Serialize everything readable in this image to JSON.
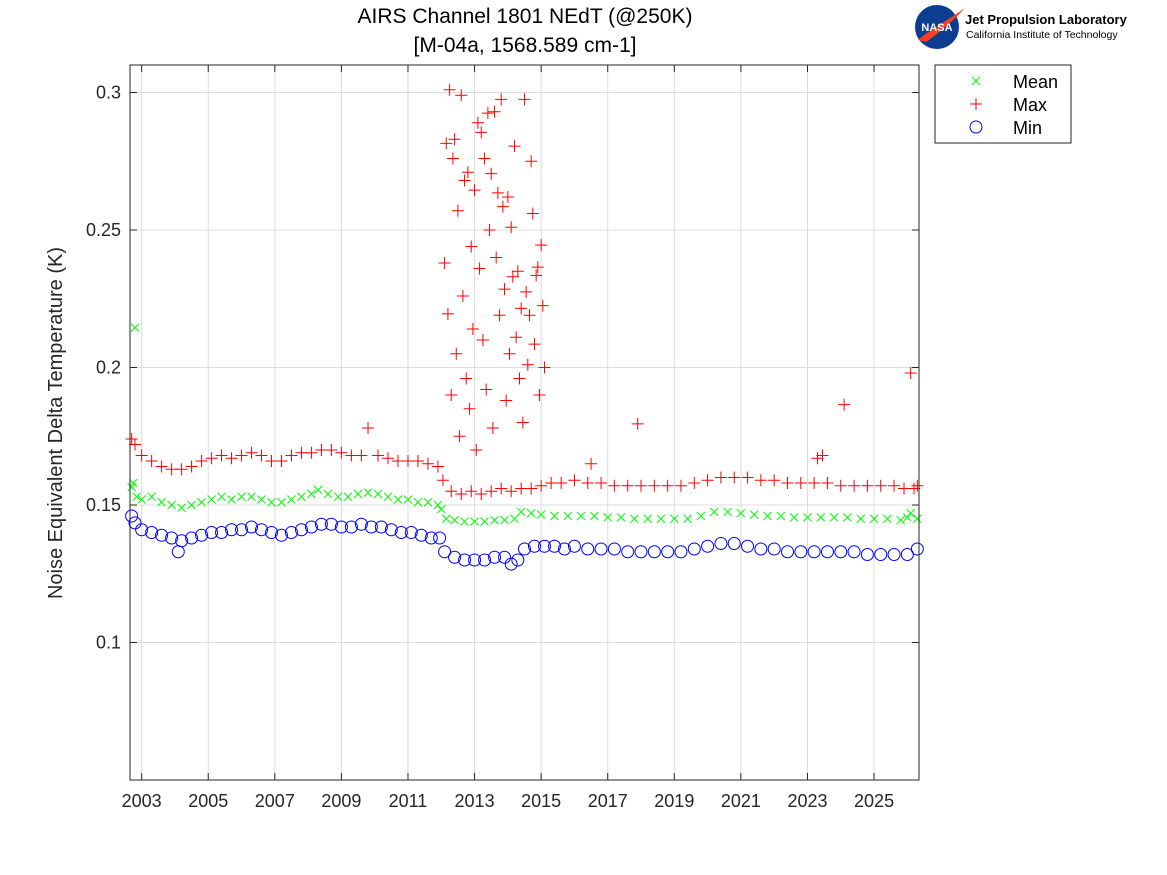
{
  "chart_data": {
    "type": "scatter",
    "title": [
      "AIRS Channel 1801 NEdT (@250K)",
      "[M-04a, 1568.589 cm-1]"
    ],
    "xlabel": "",
    "ylabel": "Noise Equivalent Delta Temperature (K)",
    "xlim": [
      2002.65,
      2026.35
    ],
    "ylim": [
      0.05,
      0.31
    ],
    "xticks": [
      2003,
      2005,
      2007,
      2009,
      2011,
      2013,
      2015,
      2017,
      2019,
      2021,
      2023,
      2025
    ],
    "xtick_labels": [
      "2003",
      "2005",
      "2007",
      "2009",
      "2011",
      "2013",
      "2015",
      "2017",
      "2019",
      "2021",
      "2023",
      "2025"
    ],
    "yticks": [
      0.1,
      0.15,
      0.2,
      0.25,
      0.3
    ],
    "ytick_labels": [
      "0.1",
      "0.15",
      "0.2",
      "0.25",
      "0.3"
    ],
    "grid": true,
    "legend": "outside-top-right",
    "series": [
      {
        "name": "Mean",
        "marker": "x",
        "color": "#00ff00",
        "points": [
          [
            2002.7,
            0.1565
          ],
          [
            2002.75,
            0.158
          ],
          [
            2002.8,
            0.2145
          ],
          [
            2002.85,
            0.153
          ],
          [
            2003.0,
            0.152
          ],
          [
            2003.3,
            0.153
          ],
          [
            2003.6,
            0.151
          ],
          [
            2003.9,
            0.15
          ],
          [
            2004.2,
            0.149
          ],
          [
            2004.5,
            0.15
          ],
          [
            2004.8,
            0.151
          ],
          [
            2005.1,
            0.152
          ],
          [
            2005.4,
            0.153
          ],
          [
            2005.7,
            0.152
          ],
          [
            2006.0,
            0.153
          ],
          [
            2006.3,
            0.153
          ],
          [
            2006.6,
            0.152
          ],
          [
            2006.9,
            0.151
          ],
          [
            2007.2,
            0.151
          ],
          [
            2007.5,
            0.152
          ],
          [
            2007.8,
            0.153
          ],
          [
            2008.1,
            0.154
          ],
          [
            2008.3,
            0.1555
          ],
          [
            2008.6,
            0.154
          ],
          [
            2008.9,
            0.153
          ],
          [
            2009.2,
            0.153
          ],
          [
            2009.5,
            0.154
          ],
          [
            2009.8,
            0.1545
          ],
          [
            2010.1,
            0.154
          ],
          [
            2010.4,
            0.153
          ],
          [
            2010.7,
            0.152
          ],
          [
            2011.0,
            0.152
          ],
          [
            2011.3,
            0.151
          ],
          [
            2011.6,
            0.151
          ],
          [
            2011.9,
            0.15
          ],
          [
            2012.0,
            0.1485
          ],
          [
            2012.15,
            0.145
          ],
          [
            2012.4,
            0.1445
          ],
          [
            2012.7,
            0.144
          ],
          [
            2013.0,
            0.144
          ],
          [
            2013.3,
            0.144
          ],
          [
            2013.6,
            0.1445
          ],
          [
            2013.9,
            0.1445
          ],
          [
            2014.2,
            0.145
          ],
          [
            2014.4,
            0.1475
          ],
          [
            2014.7,
            0.147
          ],
          [
            2015.0,
            0.1465
          ],
          [
            2015.4,
            0.146
          ],
          [
            2015.8,
            0.146
          ],
          [
            2016.2,
            0.146
          ],
          [
            2016.6,
            0.146
          ],
          [
            2017.0,
            0.1455
          ],
          [
            2017.4,
            0.1455
          ],
          [
            2017.8,
            0.145
          ],
          [
            2018.2,
            0.145
          ],
          [
            2018.6,
            0.145
          ],
          [
            2019.0,
            0.145
          ],
          [
            2019.4,
            0.145
          ],
          [
            2019.8,
            0.146
          ],
          [
            2020.2,
            0.1475
          ],
          [
            2020.6,
            0.1475
          ],
          [
            2021.0,
            0.147
          ],
          [
            2021.4,
            0.1465
          ],
          [
            2021.8,
            0.146
          ],
          [
            2022.2,
            0.146
          ],
          [
            2022.6,
            0.1455
          ],
          [
            2023.0,
            0.1455
          ],
          [
            2023.4,
            0.1455
          ],
          [
            2023.8,
            0.1455
          ],
          [
            2024.2,
            0.1455
          ],
          [
            2024.6,
            0.145
          ],
          [
            2025.0,
            0.145
          ],
          [
            2025.4,
            0.145
          ],
          [
            2025.8,
            0.1445
          ],
          [
            2026.0,
            0.1455
          ],
          [
            2026.1,
            0.147
          ],
          [
            2026.3,
            0.145
          ]
        ]
      },
      {
        "name": "Max",
        "marker": "+",
        "color": "#ff0000",
        "points": [
          [
            2002.7,
            0.174
          ],
          [
            2002.8,
            0.172
          ],
          [
            2003.0,
            0.168
          ],
          [
            2003.3,
            0.166
          ],
          [
            2003.6,
            0.164
          ],
          [
            2003.9,
            0.163
          ],
          [
            2004.2,
            0.163
          ],
          [
            2004.5,
            0.164
          ],
          [
            2004.8,
            0.166
          ],
          [
            2005.1,
            0.167
          ],
          [
            2005.4,
            0.168
          ],
          [
            2005.7,
            0.167
          ],
          [
            2006.0,
            0.168
          ],
          [
            2006.3,
            0.169
          ],
          [
            2006.6,
            0.168
          ],
          [
            2006.9,
            0.166
          ],
          [
            2007.2,
            0.166
          ],
          [
            2007.5,
            0.168
          ],
          [
            2007.8,
            0.169
          ],
          [
            2008.1,
            0.169
          ],
          [
            2008.4,
            0.17
          ],
          [
            2008.7,
            0.17
          ],
          [
            2009.0,
            0.169
          ],
          [
            2009.3,
            0.168
          ],
          [
            2009.6,
            0.168
          ],
          [
            2009.8,
            0.178
          ],
          [
            2010.1,
            0.168
          ],
          [
            2010.4,
            0.167
          ],
          [
            2010.7,
            0.166
          ],
          [
            2011.0,
            0.166
          ],
          [
            2011.3,
            0.166
          ],
          [
            2011.6,
            0.165
          ],
          [
            2011.9,
            0.164
          ],
          [
            2012.05,
            0.159
          ],
          [
            2012.1,
            0.238
          ],
          [
            2012.15,
            0.2815
          ],
          [
            2012.2,
            0.2195
          ],
          [
            2012.25,
            0.301
          ],
          [
            2012.3,
            0.19
          ],
          [
            2012.35,
            0.276
          ],
          [
            2012.4,
            0.283
          ],
          [
            2012.45,
            0.205
          ],
          [
            2012.5,
            0.257
          ],
          [
            2012.55,
            0.175
          ],
          [
            2012.6,
            0.299
          ],
          [
            2012.65,
            0.226
          ],
          [
            2012.7,
            0.268
          ],
          [
            2012.75,
            0.196
          ],
          [
            2012.8,
            0.271
          ],
          [
            2012.85,
            0.185
          ],
          [
            2012.9,
            0.244
          ],
          [
            2012.95,
            0.214
          ],
          [
            2013.0,
            0.2645
          ],
          [
            2013.05,
            0.17
          ],
          [
            2013.1,
            0.289
          ],
          [
            2013.15,
            0.236
          ],
          [
            2013.2,
            0.2855
          ],
          [
            2013.25,
            0.21
          ],
          [
            2013.3,
            0.276
          ],
          [
            2013.35,
            0.192
          ],
          [
            2013.4,
            0.2925
          ],
          [
            2013.45,
            0.25
          ],
          [
            2013.5,
            0.2705
          ],
          [
            2013.55,
            0.178
          ],
          [
            2013.6,
            0.293
          ],
          [
            2013.65,
            0.24
          ],
          [
            2013.7,
            0.2635
          ],
          [
            2013.75,
            0.219
          ],
          [
            2013.8,
            0.2975
          ],
          [
            2013.85,
            0.2585
          ],
          [
            2013.9,
            0.2285
          ],
          [
            2013.95,
            0.188
          ],
          [
            2014.0,
            0.262
          ],
          [
            2014.05,
            0.205
          ],
          [
            2014.1,
            0.251
          ],
          [
            2014.15,
            0.233
          ],
          [
            2014.2,
            0.2805
          ],
          [
            2014.25,
            0.211
          ],
          [
            2014.3,
            0.235
          ],
          [
            2014.35,
            0.196
          ],
          [
            2014.4,
            0.2215
          ],
          [
            2014.45,
            0.18
          ],
          [
            2014.5,
            0.2975
          ],
          [
            2014.55,
            0.2275
          ],
          [
            2014.6,
            0.201
          ],
          [
            2014.65,
            0.219
          ],
          [
            2014.7,
            0.275
          ],
          [
            2014.75,
            0.256
          ],
          [
            2014.8,
            0.2085
          ],
          [
            2014.85,
            0.2335
          ],
          [
            2014.9,
            0.2365
          ],
          [
            2014.95,
            0.19
          ],
          [
            2015.0,
            0.2445
          ],
          [
            2015.05,
            0.2225
          ],
          [
            2015.1,
            0.2
          ],
          [
            2012.3,
            0.155
          ],
          [
            2012.6,
            0.154
          ],
          [
            2012.9,
            0.155
          ],
          [
            2013.2,
            0.154
          ],
          [
            2013.5,
            0.155
          ],
          [
            2013.8,
            0.156
          ],
          [
            2014.1,
            0.155
          ],
          [
            2014.4,
            0.156
          ],
          [
            2014.7,
            0.156
          ],
          [
            2015.0,
            0.157
          ],
          [
            2015.3,
            0.158
          ],
          [
            2015.6,
            0.158
          ],
          [
            2016.0,
            0.159
          ],
          [
            2016.4,
            0.158
          ],
          [
            2016.5,
            0.165
          ],
          [
            2016.8,
            0.158
          ],
          [
            2017.2,
            0.157
          ],
          [
            2017.6,
            0.157
          ],
          [
            2017.9,
            0.1795
          ],
          [
            2018.0,
            0.157
          ],
          [
            2018.4,
            0.157
          ],
          [
            2018.8,
            0.157
          ],
          [
            2019.2,
            0.157
          ],
          [
            2019.6,
            0.158
          ],
          [
            2020.0,
            0.159
          ],
          [
            2020.4,
            0.16
          ],
          [
            2020.8,
            0.16
          ],
          [
            2021.2,
            0.16
          ],
          [
            2021.6,
            0.159
          ],
          [
            2022.0,
            0.159
          ],
          [
            2022.4,
            0.158
          ],
          [
            2022.8,
            0.158
          ],
          [
            2023.2,
            0.158
          ],
          [
            2023.3,
            0.167
          ],
          [
            2023.45,
            0.168
          ],
          [
            2023.6,
            0.158
          ],
          [
            2024.0,
            0.157
          ],
          [
            2024.1,
            0.1865
          ],
          [
            2024.4,
            0.157
          ],
          [
            2024.8,
            0.157
          ],
          [
            2025.2,
            0.157
          ],
          [
            2025.6,
            0.157
          ],
          [
            2025.9,
            0.156
          ],
          [
            2026.1,
            0.198
          ],
          [
            2026.2,
            0.156
          ],
          [
            2026.3,
            0.157
          ]
        ]
      },
      {
        "name": "Min",
        "marker": "o",
        "color": "#0000ff",
        "points": [
          [
            2002.7,
            0.146
          ],
          [
            2002.8,
            0.1435
          ],
          [
            2003.0,
            0.141
          ],
          [
            2003.3,
            0.14
          ],
          [
            2003.6,
            0.139
          ],
          [
            2003.9,
            0.138
          ],
          [
            2004.1,
            0.133
          ],
          [
            2004.2,
            0.137
          ],
          [
            2004.5,
            0.138
          ],
          [
            2004.8,
            0.139
          ],
          [
            2005.1,
            0.14
          ],
          [
            2005.4,
            0.14
          ],
          [
            2005.7,
            0.141
          ],
          [
            2006.0,
            0.141
          ],
          [
            2006.3,
            0.142
          ],
          [
            2006.6,
            0.141
          ],
          [
            2006.9,
            0.14
          ],
          [
            2007.2,
            0.139
          ],
          [
            2007.5,
            0.14
          ],
          [
            2007.8,
            0.141
          ],
          [
            2008.1,
            0.142
          ],
          [
            2008.4,
            0.143
          ],
          [
            2008.7,
            0.143
          ],
          [
            2009.0,
            0.142
          ],
          [
            2009.3,
            0.142
          ],
          [
            2009.6,
            0.143
          ],
          [
            2009.9,
            0.142
          ],
          [
            2010.2,
            0.142
          ],
          [
            2010.5,
            0.141
          ],
          [
            2010.8,
            0.14
          ],
          [
            2011.1,
            0.14
          ],
          [
            2011.4,
            0.139
          ],
          [
            2011.7,
            0.138
          ],
          [
            2011.95,
            0.138
          ],
          [
            2012.1,
            0.133
          ],
          [
            2012.4,
            0.131
          ],
          [
            2012.7,
            0.13
          ],
          [
            2013.0,
            0.13
          ],
          [
            2013.3,
            0.13
          ],
          [
            2013.6,
            0.131
          ],
          [
            2013.9,
            0.131
          ],
          [
            2014.1,
            0.1285
          ],
          [
            2014.3,
            0.13
          ],
          [
            2014.5,
            0.134
          ],
          [
            2014.8,
            0.135
          ],
          [
            2015.1,
            0.135
          ],
          [
            2015.4,
            0.135
          ],
          [
            2015.7,
            0.134
          ],
          [
            2016.0,
            0.135
          ],
          [
            2016.4,
            0.134
          ],
          [
            2016.8,
            0.134
          ],
          [
            2017.2,
            0.134
          ],
          [
            2017.6,
            0.133
          ],
          [
            2018.0,
            0.133
          ],
          [
            2018.4,
            0.133
          ],
          [
            2018.8,
            0.133
          ],
          [
            2019.2,
            0.133
          ],
          [
            2019.6,
            0.134
          ],
          [
            2020.0,
            0.135
          ],
          [
            2020.4,
            0.136
          ],
          [
            2020.8,
            0.136
          ],
          [
            2021.2,
            0.135
          ],
          [
            2021.6,
            0.134
          ],
          [
            2022.0,
            0.134
          ],
          [
            2022.4,
            0.133
          ],
          [
            2022.8,
            0.133
          ],
          [
            2023.2,
            0.133
          ],
          [
            2023.6,
            0.133
          ],
          [
            2024.0,
            0.133
          ],
          [
            2024.4,
            0.133
          ],
          [
            2024.8,
            0.132
          ],
          [
            2025.2,
            0.132
          ],
          [
            2025.6,
            0.132
          ],
          [
            2026.0,
            0.132
          ],
          [
            2026.3,
            0.134
          ]
        ]
      }
    ]
  },
  "logo": {
    "badge": "NASA",
    "line1": "Jet Propulsion Laboratory",
    "line2": "California Institute of Technology",
    "badge_color": "#0b3d91",
    "swoosh_color": "#fc3d21"
  }
}
